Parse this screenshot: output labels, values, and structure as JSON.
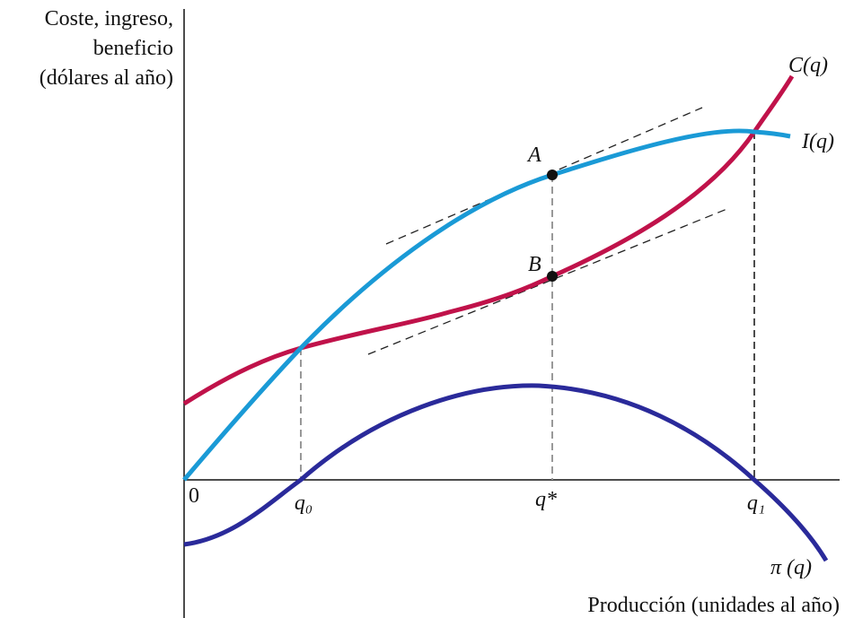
{
  "y_axis_label": [
    "Coste, ingreso,",
    "beneficio",
    "(dólares al año)"
  ],
  "x_axis_label": "Producción (unidades al año)",
  "origin_label": "0",
  "x_ticks": [
    "q₀",
    "q*",
    "q₁"
  ],
  "curves": [
    {
      "label": "C(q)"
    },
    {
      "label": "I(q)"
    },
    {
      "label": "π (q)"
    }
  ],
  "points": [
    "A",
    "B"
  ]
}
